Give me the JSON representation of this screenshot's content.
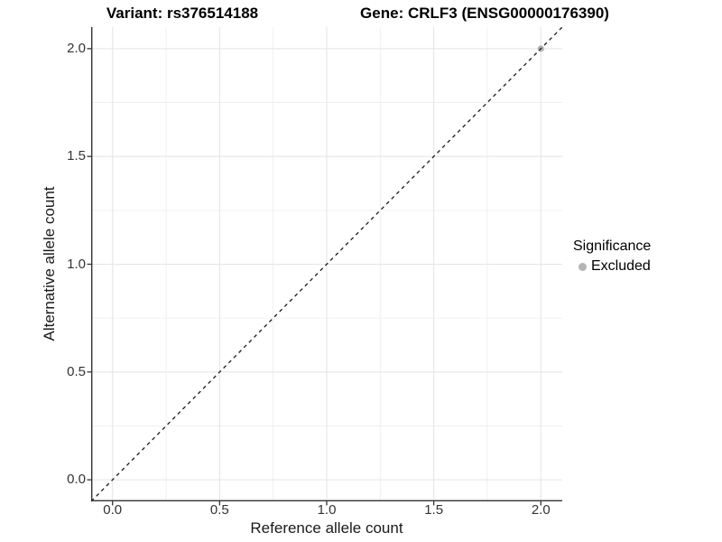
{
  "titles": {
    "variant": "Variant: rs376514188",
    "gene": "Gene: CRLF3 (ENSG00000176390)"
  },
  "chart_data": {
    "type": "scatter",
    "xlabel": "Reference allele count",
    "ylabel": "Alternative allele count",
    "xlim": [
      -0.1,
      2.1
    ],
    "ylim": [
      -0.1,
      2.1
    ],
    "xticks": [
      0.0,
      0.5,
      1.0,
      1.5,
      2.0
    ],
    "yticks": [
      0.0,
      0.5,
      1.0,
      1.5,
      2.0
    ],
    "xtick_labels": [
      "0.0",
      "0.5",
      "1.0",
      "1.5",
      "2.0"
    ],
    "ytick_labels": [
      "0.0",
      "0.5",
      "1.0",
      "1.5",
      "2.0"
    ],
    "minor_ticks": [
      0.25,
      0.75,
      1.25,
      1.75
    ],
    "grid": true,
    "reference_line": {
      "style": "dashed",
      "from": [
        -0.1,
        -0.1
      ],
      "to": [
        2.1,
        2.1
      ],
      "meaning": "identity y=x"
    },
    "series": [
      {
        "name": "Excluded",
        "color": "#b4b4b4",
        "points": [
          [
            2.0,
            2.0
          ]
        ]
      }
    ],
    "legend": {
      "title": "Significance",
      "position": "right",
      "items": [
        {
          "label": "Excluded",
          "color": "#b4b4b4"
        }
      ]
    }
  },
  "colors": {
    "background": "#ffffff",
    "grid_major": "#e5e5e5",
    "grid_minor": "#f0f0f0",
    "axis_line": "#333333",
    "tick_mark": "#333333",
    "dashed_line": "#1a1a1a",
    "point": "#b4b4b4"
  }
}
